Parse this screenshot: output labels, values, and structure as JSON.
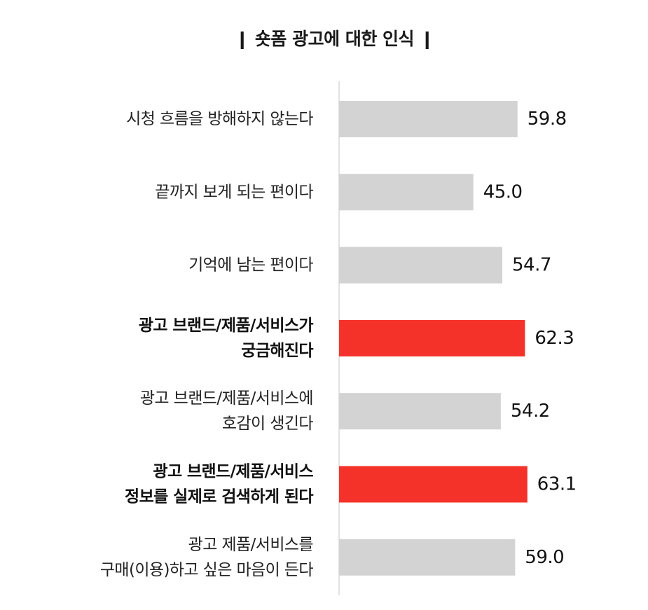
{
  "chart_data": {
    "type": "bar",
    "orientation": "horizontal",
    "title": "❙ 숏폼 광고에 대한 인식 ❙",
    "categories": [
      [
        "시청 흐름을 방해하지 않는다"
      ],
      [
        "끝까지 보게 되는 편이다"
      ],
      [
        "기억에 남는 편이다"
      ],
      [
        "광고 브랜드/제품/서비스가",
        "궁금해진다"
      ],
      [
        "광고 브랜드/제품/서비스에",
        "호감이 생긴다"
      ],
      [
        "광고 브랜드/제품/서비스",
        "정보를 실제로 검색하게 된다"
      ],
      [
        "광고 제품/서비스를",
        "구매(이용)하고 싶은 마음이 든다"
      ]
    ],
    "values": [
      59.8,
      45.0,
      54.7,
      62.3,
      54.2,
      63.1,
      59.0
    ],
    "value_labels": [
      "59.8",
      "45.0",
      "54.7",
      "62.3",
      "54.2",
      "63.1",
      "59.0"
    ],
    "highlighted": [
      false,
      false,
      false,
      true,
      false,
      true,
      false
    ],
    "xlim": [
      0,
      100
    ],
    "grid": false,
    "legend": "none",
    "colors": {
      "default_bar": "#d3d3d3",
      "highlight_bar": "#f4322a",
      "axis_line": "#d9d9d9"
    }
  }
}
